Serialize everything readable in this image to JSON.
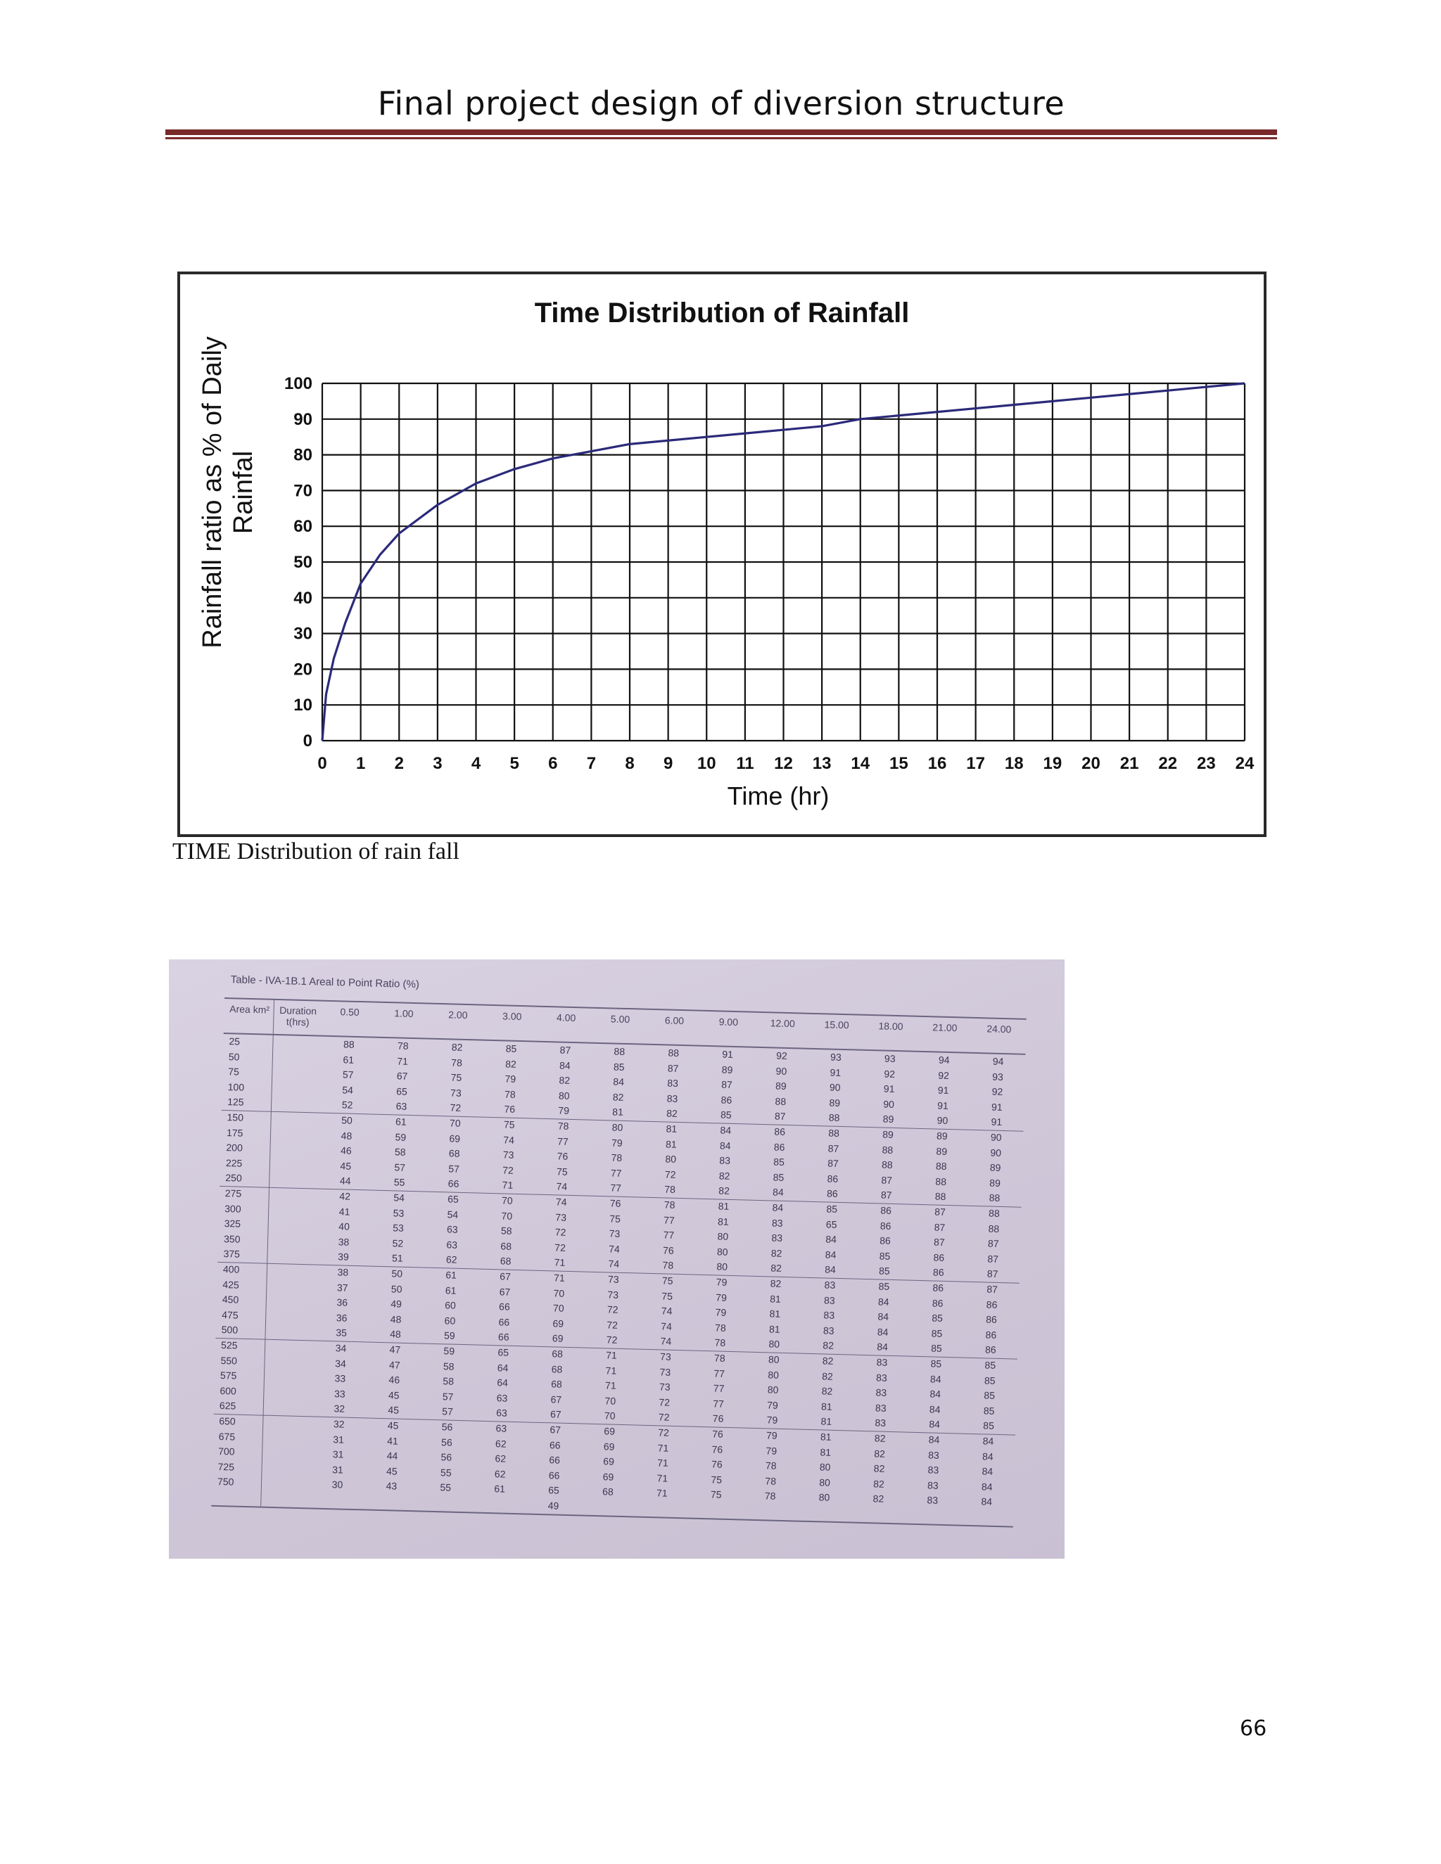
{
  "page": {
    "header": "Final project design of diversion structure",
    "caption": "TIME Distribution  of rain fall",
    "page_number": "66"
  },
  "chart_data": {
    "type": "line",
    "title": "Time Distribution of Rainfall",
    "xlabel": "Time (hr)",
    "ylabel": "Rainfall ratio as % of Daily Rainfal",
    "xlim": [
      0,
      24
    ],
    "ylim": [
      0,
      100
    ],
    "x_ticks": [
      0,
      1,
      2,
      3,
      4,
      5,
      6,
      7,
      8,
      9,
      10,
      11,
      12,
      13,
      14,
      15,
      16,
      17,
      18,
      19,
      20,
      21,
      22,
      23,
      24
    ],
    "y_ticks": [
      0,
      10,
      20,
      30,
      40,
      50,
      60,
      70,
      80,
      90,
      100
    ],
    "grid": true,
    "line_color": "#2b2a7a",
    "series": [
      {
        "x": [
          0,
          0.1,
          0.3,
          0.6,
          1,
          1.5,
          2,
          3,
          4,
          5,
          6,
          7,
          8,
          9,
          10,
          11,
          12,
          13,
          14,
          15,
          16,
          17,
          18,
          19,
          20,
          21,
          22,
          23,
          24
        ],
        "y": [
          0,
          13,
          23,
          33,
          44,
          52,
          58,
          66,
          72,
          76,
          79,
          81,
          83,
          84,
          85,
          86,
          87,
          88,
          90,
          91,
          92,
          93,
          94,
          95,
          96,
          97,
          98,
          99,
          100
        ]
      }
    ]
  },
  "table": {
    "title": "Table - IVA-1B.1 Areal to Point Ratio (%)",
    "col_header_area": "Area km²",
    "col_header_duration": "Duration t(hrs)",
    "durations": [
      "0.50",
      "1.00",
      "2.00",
      "3.00",
      "4.00",
      "5.00",
      "6.00",
      "9.00",
      "12.00",
      "15.00",
      "18.00",
      "21.00",
      "24.00"
    ],
    "rows": [
      {
        "area": "25",
        "vals": [
          "88",
          "78",
          "82",
          "85",
          "87",
          "88",
          "88",
          "91",
          "92",
          "93",
          "93",
          "94",
          "94"
        ]
      },
      {
        "area": "50",
        "vals": [
          "61",
          "71",
          "78",
          "82",
          "84",
          "85",
          "87",
          "89",
          "90",
          "91",
          "92",
          "92",
          "93"
        ]
      },
      {
        "area": "75",
        "vals": [
          "57",
          "67",
          "75",
          "79",
          "82",
          "84",
          "83",
          "87",
          "89",
          "90",
          "91",
          "91",
          "92"
        ]
      },
      {
        "area": "100",
        "vals": [
          "54",
          "65",
          "73",
          "78",
          "80",
          "82",
          "83",
          "86",
          "88",
          "89",
          "90",
          "91",
          "91"
        ]
      },
      {
        "area": "125",
        "vals": [
          "52",
          "63",
          "72",
          "76",
          "79",
          "81",
          "82",
          "85",
          "87",
          "88",
          "89",
          "90",
          "91"
        ]
      },
      {
        "area": "150",
        "vals": [
          "50",
          "61",
          "70",
          "75",
          "78",
          "80",
          "81",
          "84",
          "86",
          "88",
          "89",
          "89",
          "90"
        ]
      },
      {
        "area": "175",
        "vals": [
          "48",
          "59",
          "69",
          "74",
          "77",
          "79",
          "81",
          "84",
          "86",
          "87",
          "88",
          "89",
          "90"
        ]
      },
      {
        "area": "200",
        "vals": [
          "46",
          "58",
          "68",
          "73",
          "76",
          "78",
          "80",
          "83",
          "85",
          "87",
          "88",
          "88",
          "89"
        ]
      },
      {
        "area": "225",
        "vals": [
          "45",
          "57",
          "57",
          "72",
          "75",
          "77",
          "72",
          "82",
          "85",
          "86",
          "87",
          "88",
          "89"
        ]
      },
      {
        "area": "250",
        "vals": [
          "44",
          "55",
          "66",
          "71",
          "74",
          "77",
          "78",
          "82",
          "84",
          "86",
          "87",
          "88",
          "88"
        ]
      },
      {
        "area": "275",
        "vals": [
          "42",
          "54",
          "65",
          "70",
          "74",
          "76",
          "78",
          "81",
          "84",
          "85",
          "86",
          "87",
          "88"
        ]
      },
      {
        "area": "300",
        "vals": [
          "41",
          "53",
          "54",
          "70",
          "73",
          "75",
          "77",
          "81",
          "83",
          "65",
          "86",
          "87",
          "88"
        ]
      },
      {
        "area": "325",
        "vals": [
          "40",
          "53",
          "63",
          "58",
          "72",
          "73",
          "77",
          "80",
          "83",
          "84",
          "86",
          "87",
          "87"
        ]
      },
      {
        "area": "350",
        "vals": [
          "38",
          "52",
          "63",
          "68",
          "72",
          "74",
          "76",
          "80",
          "82",
          "84",
          "85",
          "86",
          "87"
        ]
      },
      {
        "area": "375",
        "vals": [
          "39",
          "51",
          "62",
          "68",
          "71",
          "74",
          "78",
          "80",
          "82",
          "84",
          "85",
          "86",
          "87"
        ]
      },
      {
        "area": "400",
        "vals": [
          "38",
          "50",
          "61",
          "67",
          "71",
          "73",
          "75",
          "79",
          "82",
          "83",
          "85",
          "86",
          "87"
        ]
      },
      {
        "area": "425",
        "vals": [
          "37",
          "50",
          "61",
          "67",
          "70",
          "73",
          "75",
          "79",
          "81",
          "83",
          "84",
          "86",
          "86"
        ]
      },
      {
        "area": "450",
        "vals": [
          "36",
          "49",
          "60",
          "66",
          "70",
          "72",
          "74",
          "79",
          "81",
          "83",
          "84",
          "85",
          "86"
        ]
      },
      {
        "area": "475",
        "vals": [
          "36",
          "48",
          "60",
          "66",
          "69",
          "72",
          "74",
          "78",
          "81",
          "83",
          "84",
          "85",
          "86"
        ]
      },
      {
        "area": "500",
        "vals": [
          "35",
          "48",
          "59",
          "66",
          "69",
          "72",
          "74",
          "78",
          "80",
          "82",
          "84",
          "85",
          "86"
        ]
      },
      {
        "area": "525",
        "vals": [
          "34",
          "47",
          "59",
          "65",
          "68",
          "71",
          "73",
          "78",
          "80",
          "82",
          "83",
          "85",
          "85"
        ]
      },
      {
        "area": "550",
        "vals": [
          "34",
          "47",
          "58",
          "64",
          "68",
          "71",
          "73",
          "77",
          "80",
          "82",
          "83",
          "84",
          "85"
        ]
      },
      {
        "area": "575",
        "vals": [
          "33",
          "46",
          "58",
          "64",
          "68",
          "71",
          "73",
          "77",
          "80",
          "82",
          "83",
          "84",
          "85"
        ]
      },
      {
        "area": "600",
        "vals": [
          "33",
          "45",
          "57",
          "63",
          "67",
          "70",
          "72",
          "77",
          "79",
          "81",
          "83",
          "84",
          "85"
        ]
      },
      {
        "area": "625",
        "vals": [
          "32",
          "45",
          "57",
          "63",
          "67",
          "70",
          "72",
          "76",
          "79",
          "81",
          "83",
          "84",
          "85"
        ]
      },
      {
        "area": "650",
        "vals": [
          "32",
          "45",
          "56",
          "63",
          "67",
          "69",
          "72",
          "76",
          "79",
          "81",
          "82",
          "84",
          "84"
        ]
      },
      {
        "area": "675",
        "vals": [
          "31",
          "41",
          "56",
          "62",
          "66",
          "69",
          "71",
          "76",
          "79",
          "81",
          "82",
          "83",
          "84"
        ]
      },
      {
        "area": "700",
        "vals": [
          "31",
          "44",
          "56",
          "62",
          "66",
          "69",
          "71",
          "76",
          "78",
          "80",
          "82",
          "83",
          "84"
        ]
      },
      {
        "area": "725",
        "vals": [
          "31",
          "45",
          "55",
          "62",
          "66",
          "69",
          "71",
          "75",
          "78",
          "80",
          "82",
          "83",
          "84"
        ]
      },
      {
        "area": "750",
        "vals": [
          "30",
          "43",
          "55",
          "61",
          "65",
          "68",
          "71",
          "75",
          "78",
          "80",
          "82",
          "83",
          "84"
        ]
      }
    ],
    "extra_values": [
      "49"
    ]
  }
}
